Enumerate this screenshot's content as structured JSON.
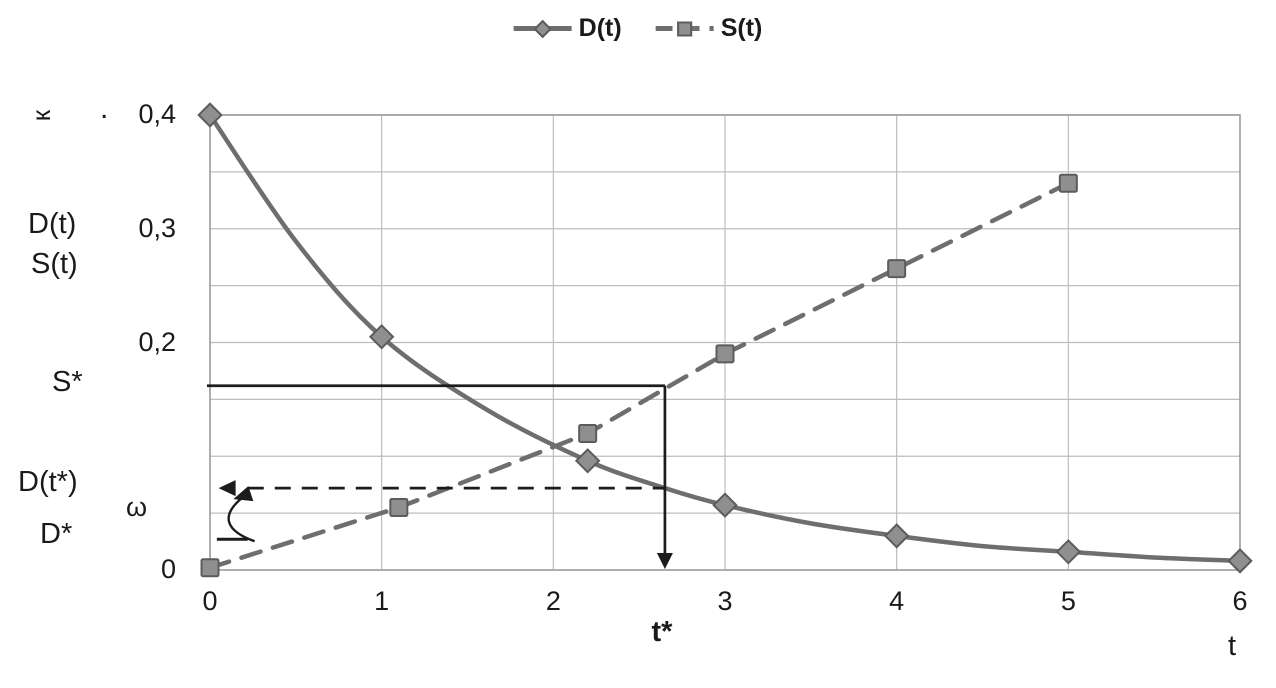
{
  "legend": {
    "items": [
      {
        "label": "D(t)",
        "marker": "diamond",
        "line": "solid"
      },
      {
        "label": "S(t)",
        "marker": "square",
        "line": "dashed"
      }
    ]
  },
  "axis_labels": {
    "kappa": "к",
    "dot": ".",
    "d_of_t": "D(t)",
    "s_of_t": "S(t)",
    "s_star": "S*",
    "d_t_star": "D(t*)",
    "omega": "ω",
    "d_star": "D*",
    "t_star": "t*",
    "t": "t"
  },
  "colors": {
    "series": "#6e6e6e",
    "grid": "#bdbdbd",
    "border": "#9a9a9a",
    "marker_fill": "#8f8f8f",
    "marker_edge": "#5c5c5c",
    "annotation": "#1c1c1c",
    "text": "#1a1a1a"
  },
  "chart_data": {
    "type": "line",
    "title": "",
    "xlabel": "t",
    "ylabel": "к, D(t), S(t)",
    "xlim": [
      0,
      6
    ],
    "ylim": [
      0,
      0.4
    ],
    "grid": {
      "x_step": 1,
      "y_step": 0.05
    },
    "xticks": [
      "0",
      "1",
      "2",
      "3",
      "4",
      "5",
      "6"
    ],
    "yticks": [
      {
        "value": 0.4,
        "label": "0,4"
      },
      {
        "value": 0.3,
        "label": "0,3"
      },
      {
        "value": 0.2,
        "label": "0,2"
      },
      {
        "value": 0.0,
        "label": "0"
      }
    ],
    "legend_position": "top-center",
    "series": [
      {
        "name": "D(t)",
        "line": "solid",
        "marker": "diamond",
        "smooth": true,
        "x": [
          0,
          0.5,
          1,
          1.6,
          2.2,
          2.65,
          3,
          3.5,
          4,
          4.5,
          5,
          5.5,
          6
        ],
        "y": [
          0.4,
          0.289,
          0.205,
          0.142,
          0.096,
          0.072,
          0.057,
          0.041,
          0.03,
          0.021,
          0.016,
          0.011,
          0.008
        ],
        "marker_x": [
          0,
          1,
          2.2,
          3,
          4,
          5,
          6
        ]
      },
      {
        "name": "S(t)",
        "line": "dashed",
        "marker": "square",
        "smooth": false,
        "x": [
          0,
          1.1,
          2.2,
          3,
          4,
          5
        ],
        "y": [
          0.002,
          0.055,
          0.12,
          0.19,
          0.265,
          0.34
        ],
        "marker_x": [
          0,
          1.1,
          2.2,
          3,
          4,
          5
        ]
      }
    ],
    "annotations": {
      "s_star_y": 0.162,
      "d_t_star_y": 0.072,
      "d_star_y": 0.027,
      "t_star_x": 2.65
    }
  }
}
